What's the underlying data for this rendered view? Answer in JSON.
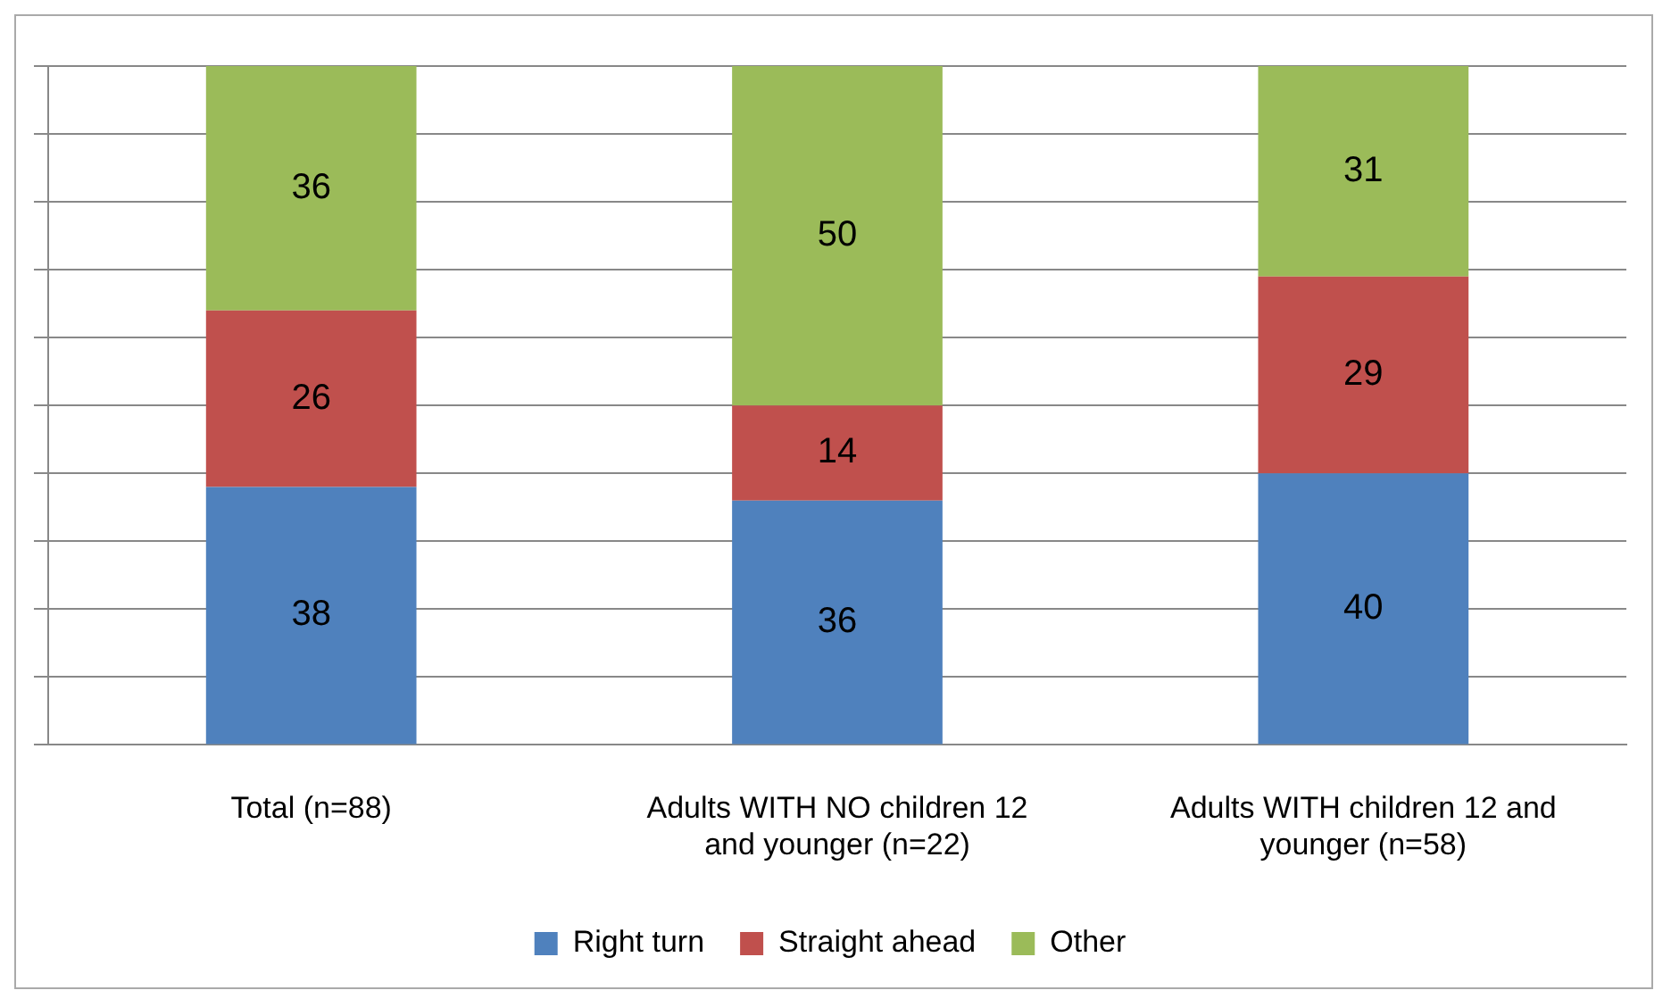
{
  "chart_data": {
    "type": "bar",
    "stacked": true,
    "categories": [
      "Total (n=88)",
      "Adults WITH NO children 12 and younger (n=22)",
      "Adults WITH children 12 and younger (n=58)"
    ],
    "series": [
      {
        "name": "Right turn",
        "color": "#4f81bd",
        "values": [
          38,
          36,
          40
        ]
      },
      {
        "name": "Straight ahead",
        "color": "#c0504d",
        "values": [
          26,
          14,
          29
        ]
      },
      {
        "name": "Other",
        "color": "#9bbb59",
        "values": [
          36,
          50,
          31
        ]
      }
    ],
    "ylim": [
      0,
      100
    ],
    "yticks": [
      {
        "value": 0,
        "label": null
      },
      {
        "value": 10,
        "label": null
      },
      {
        "value": 20,
        "label": null
      },
      {
        "value": 30,
        "label": null
      },
      {
        "value": 40,
        "label": null
      },
      {
        "value": 50,
        "label": null
      },
      {
        "value": 60,
        "label": null
      },
      {
        "value": 70,
        "label": null
      },
      {
        "value": 80,
        "label": null
      },
      {
        "value": 90,
        "label": null
      },
      {
        "value": 100,
        "label": null
      }
    ],
    "tick_labels": "x",
    "grid": "y",
    "data_labels": true,
    "legend": "bottom"
  }
}
